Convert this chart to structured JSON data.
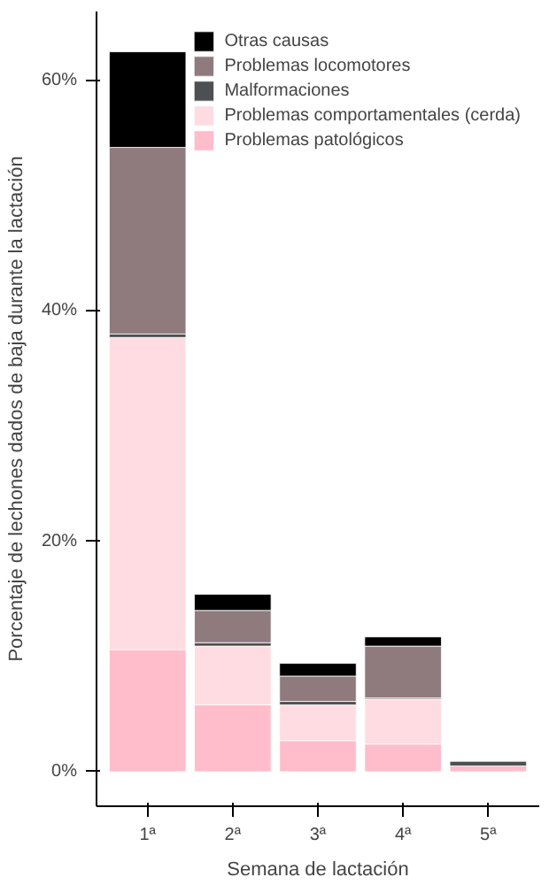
{
  "chart_data": {
    "type": "bar",
    "stacked": true,
    "xlabel": "Semana de lactación",
    "ylabel": "Porcentaje de lechones dados de baja durante la lactación",
    "categories": [
      "1ª",
      "2ª",
      "3ª",
      "4ª",
      "5ª"
    ],
    "series": [
      {
        "name": "Problemas patológicos",
        "color": "#ffbccb",
        "values": [
          10.6,
          5.8,
          2.7,
          2.4,
          0.5
        ]
      },
      {
        "name": "Problemas comportamentales (cerda)",
        "color": "#ffdce2",
        "values": [
          27.1,
          5.1,
          3.1,
          3.9,
          null
        ]
      },
      {
        "name": "Malformaciones",
        "color": "#4d5052",
        "values": [
          0.3,
          0.3,
          0.3,
          0.1,
          0.4
        ]
      },
      {
        "name": "Problemas locomotores",
        "color": "#8f7a7e",
        "values": [
          16.2,
          2.8,
          2.2,
          4.5,
          null
        ]
      },
      {
        "name": "Otras causas",
        "color": "#000000",
        "values": [
          8.3,
          1.4,
          1.1,
          0.8,
          null
        ]
      }
    ],
    "ylim": [
      -3,
      66
    ],
    "yticks": [
      {
        "value": 0,
        "label": "0%"
      },
      {
        "value": 20,
        "label": "20%"
      },
      {
        "value": 40,
        "label": "40%"
      },
      {
        "value": 60,
        "label": "60%"
      }
    ],
    "grid": false,
    "legend": "top right"
  }
}
